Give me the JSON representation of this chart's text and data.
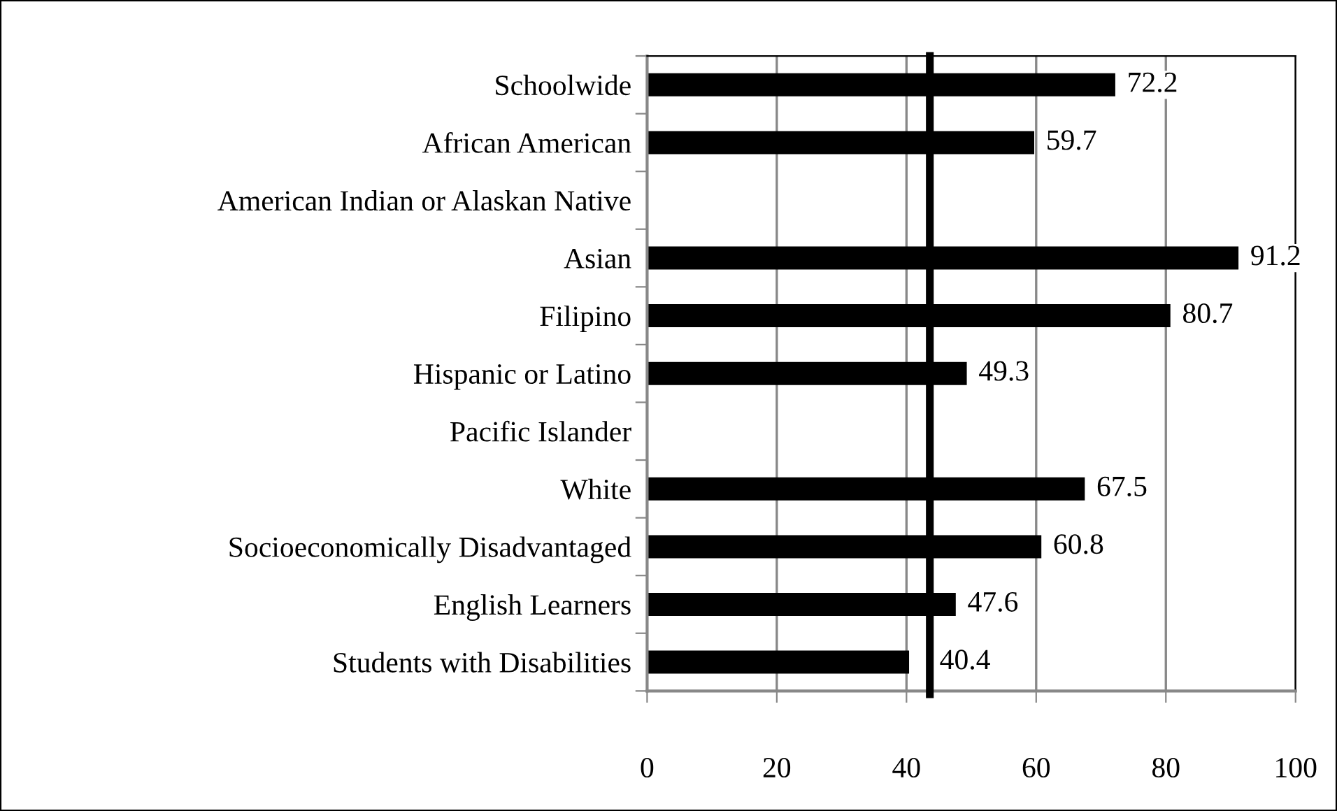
{
  "chart_data": {
    "type": "bar",
    "orientation": "horizontal",
    "categories": [
      "Schoolwide",
      "African American",
      "American Indian or Alaskan Native",
      "Asian",
      "Filipino",
      "Hispanic or Latino",
      "Pacific Islander",
      "White",
      "Socioeconomically Disadvantaged",
      "English Learners",
      "Students with Disabilities"
    ],
    "values": [
      72.2,
      59.7,
      null,
      91.2,
      80.7,
      49.3,
      null,
      67.5,
      60.8,
      47.6,
      40.4
    ],
    "color": "#000000",
    "xlim": [
      0,
      100
    ],
    "xticks": [
      0,
      20,
      40,
      60,
      80,
      100
    ],
    "grid": "x",
    "data_labels": true,
    "ref_lines": [
      {
        "axis": "x",
        "value": 43.6,
        "color": "#000000"
      }
    ]
  }
}
